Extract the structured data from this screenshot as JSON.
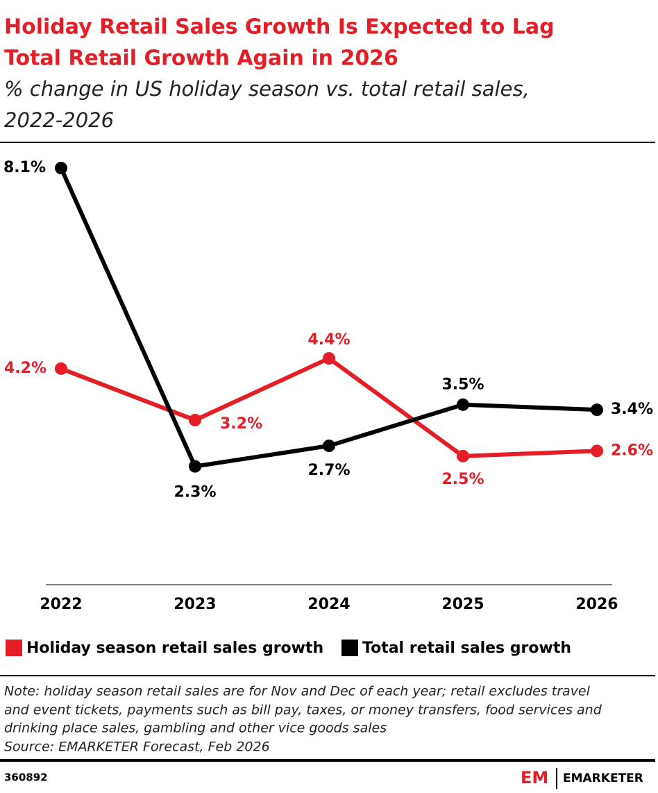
{
  "chart_data": {
    "type": "line",
    "title": [
      "Holiday Retail Sales Growth Is Expected to Lag",
      "Total Retail Growth Again in 2026"
    ],
    "subtitle": [
      "% change in US holiday season vs. total retail sales,",
      "2022-2026"
    ],
    "categories": [
      "2022",
      "2023",
      "2024",
      "2025",
      "2026"
    ],
    "series": [
      {
        "name": "Holiday season retail sales growth",
        "color": "#e41e26",
        "values": [
          4.2,
          3.2,
          4.4,
          2.5,
          2.6
        ],
        "value_labels": [
          "4.2%",
          "3.2%",
          "4.4%",
          "2.5%",
          "2.6%"
        ]
      },
      {
        "name": "Total retail sales growth",
        "color": "#000000",
        "values": [
          8.1,
          2.3,
          2.7,
          3.5,
          3.4
        ],
        "value_labels": [
          "8.1%",
          "2.3%",
          "2.7%",
          "3.5%",
          "3.4%"
        ]
      }
    ],
    "ylim": [
      0,
      8.1
    ],
    "note": [
      "Note: holiday season retail sales are for Nov and Dec of each year; retail excludes travel",
      "and event tickets, payments such as bill pay, taxes, or money transfers, food services and",
      "drinking place sales, gambling and other vice goods sales",
      "Source: EMARKETER Forecast, Feb 2026"
    ],
    "id": "360892",
    "logo_mark": "EM",
    "brand": "EMARKETER"
  }
}
